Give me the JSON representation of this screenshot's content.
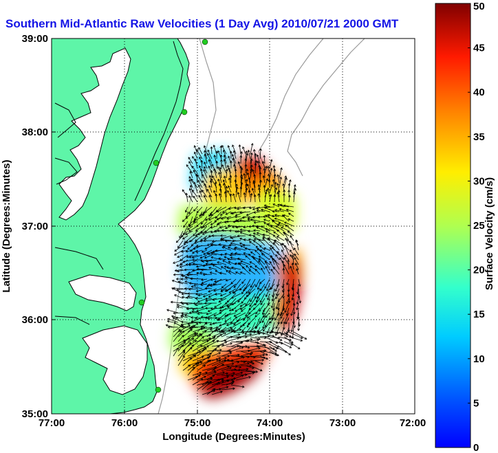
{
  "title": "Southern Mid-Atlantic Raw Velocities (1 Day Avg) 2010/07/21 2000 GMT",
  "map": {
    "xlabel": "Longitude (Degrees:Minutes)",
    "ylabel": "Latitude (Degrees:Minutes)",
    "x_ticks": [
      "77:00",
      "76:00",
      "75:00",
      "74:00",
      "73:00",
      "72:00"
    ],
    "y_ticks": [
      "39:00",
      "38:00",
      "37:00",
      "36:00",
      "35:00"
    ],
    "lon_range": [
      -77,
      -72
    ],
    "lat_range": [
      35,
      39
    ],
    "grid": true,
    "colors": {
      "land": "#5ef5a8",
      "water": "#ffffff",
      "coastline": "#000000",
      "bathymetry": "#9a9a9a",
      "stations": "#22cc22"
    }
  },
  "colorbar": {
    "label": "Surface Velocity (cm/s)",
    "ticks": [
      "0",
      "5",
      "10",
      "15",
      "20",
      "25",
      "30",
      "35",
      "40",
      "45",
      "50"
    ],
    "range": [
      0,
      50
    ],
    "colormap": "jet"
  }
}
